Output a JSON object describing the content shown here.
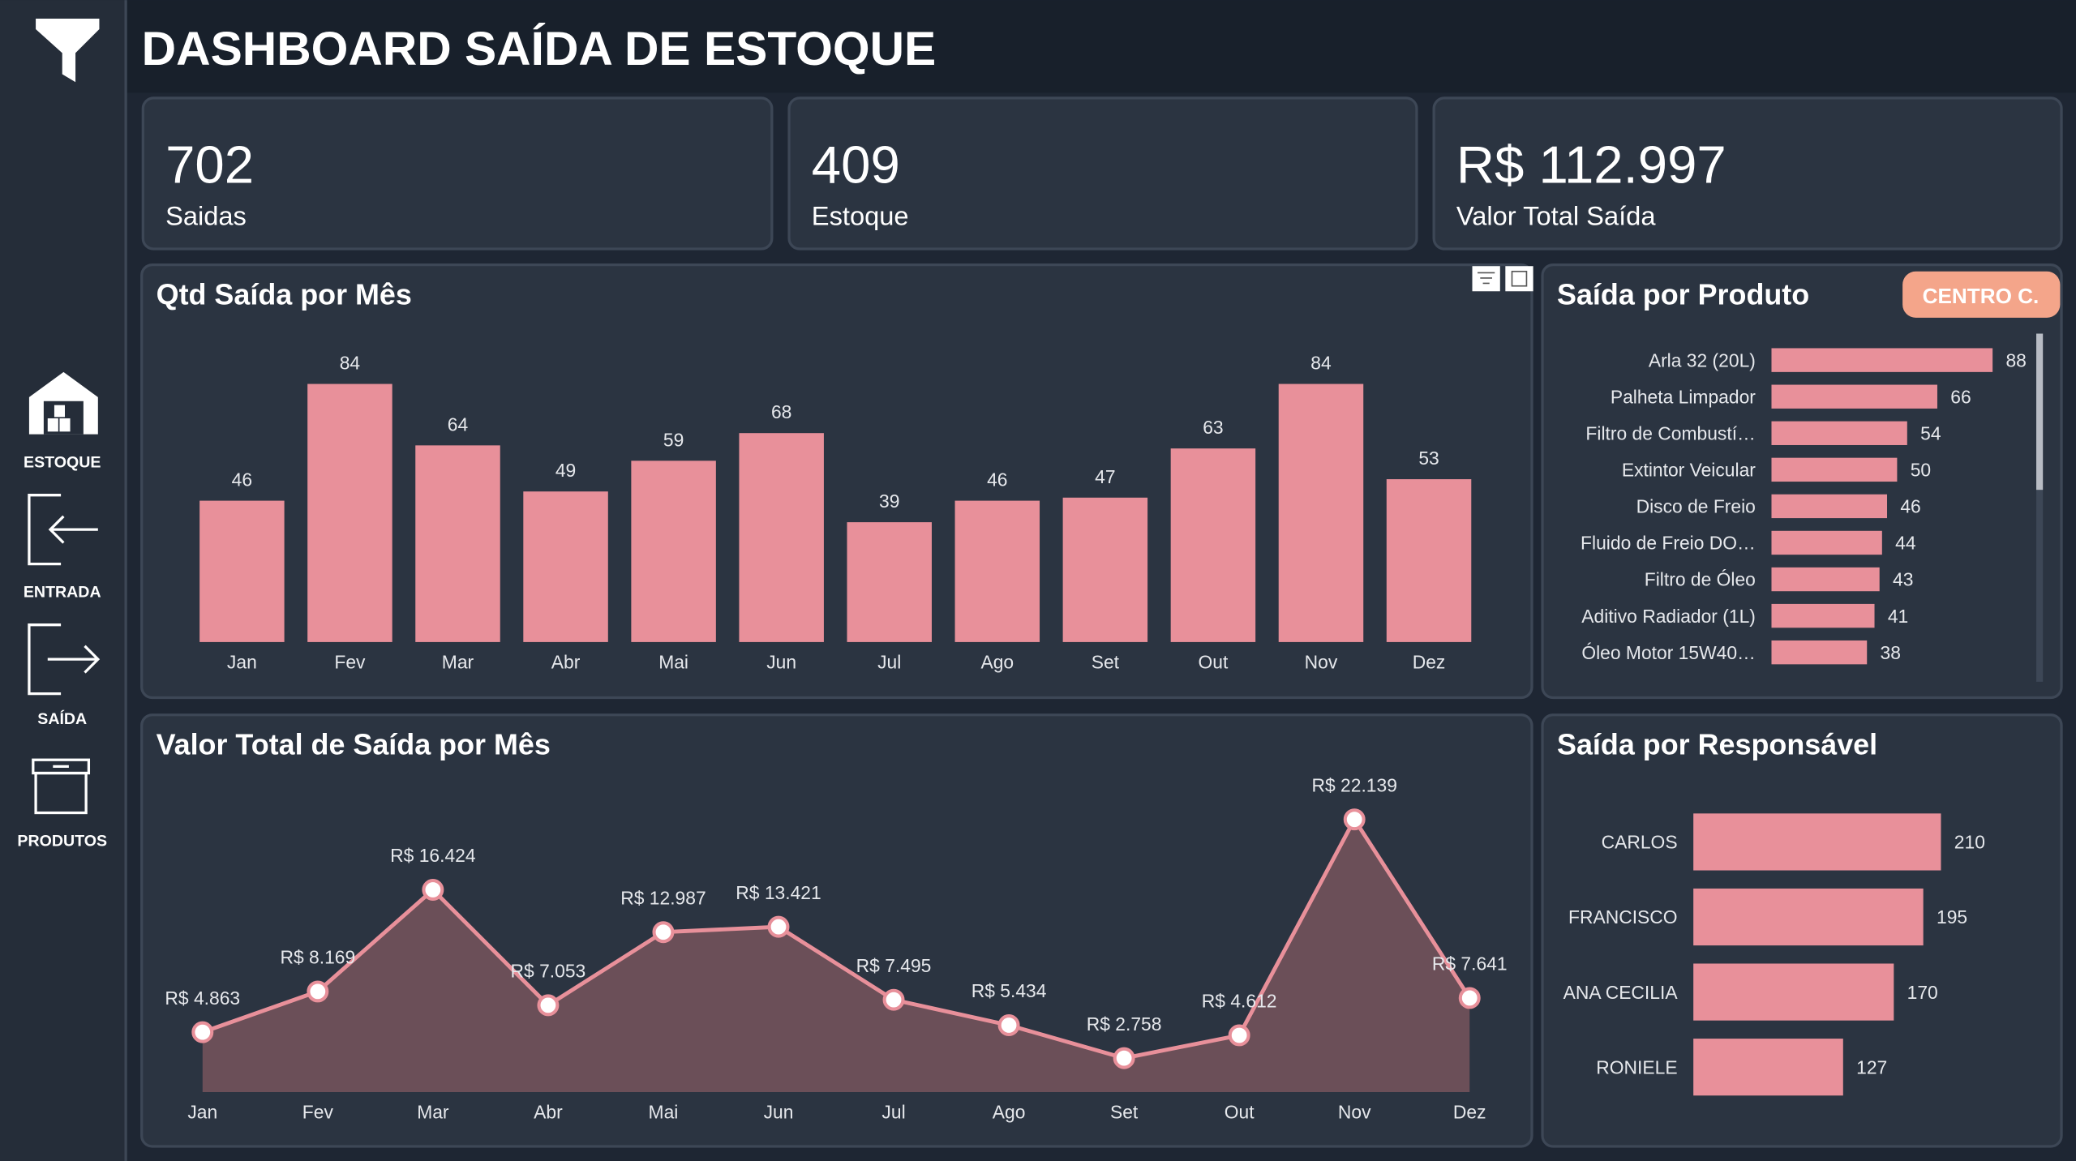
{
  "header": {
    "title": "DASHBOARD SAÍDA DE ESTOQUE"
  },
  "sidebar": {
    "items": [
      "ESTOQUE",
      "ENTRADA",
      "SAÍDA",
      "PRODUTOS"
    ]
  },
  "kpis": [
    {
      "value": 702,
      "label": "Saidas"
    },
    {
      "value": 409,
      "label": "Estoque"
    },
    {
      "value": "R$ 112.997",
      "label": "Valor Total Saída"
    }
  ],
  "chart_data": [
    {
      "type": "bar",
      "orientation": "vertical",
      "title": "Qtd Saída por Mês",
      "color": "#e8909a",
      "categories": [
        "Jan",
        "Fev",
        "Mar",
        "Abr",
        "Mai",
        "Jun",
        "Jul",
        "Ago",
        "Set",
        "Out",
        "Nov",
        "Dez"
      ],
      "values": [
        46,
        84,
        64,
        49,
        59,
        68,
        39,
        46,
        47,
        63,
        84,
        53
      ]
    },
    {
      "type": "bar",
      "orientation": "horizontal",
      "title": "Saída por Produto",
      "button": "CENTRO C.",
      "color": "#e8909a",
      "categories": [
        "Arla 32 (20L)",
        "Palheta Limpador",
        "Filtro de Combustí…",
        "Extintor Veicular",
        "Disco de Freio",
        "Fluido de Freio DO…",
        "Filtro de Óleo",
        "Aditivo Radiador (1L)",
        "Óleo Motor 15W40…"
      ],
      "values": [
        88,
        66,
        54,
        50,
        46,
        44,
        43,
        41,
        38
      ]
    },
    {
      "type": "line",
      "area": true,
      "title": "Valor Total de Saída por Mês",
      "color": "#e8909a",
      "area_color": "#6b4f58",
      "categories": [
        "Jan",
        "Fev",
        "Mar",
        "Abr",
        "Mai",
        "Jun",
        "Jul",
        "Ago",
        "Set",
        "Out",
        "Nov",
        "Dez"
      ],
      "values": [
        4863,
        8169,
        16424,
        7053,
        12987,
        13421,
        7495,
        5434,
        2758,
        4612,
        22139,
        7641
      ],
      "value_labels": [
        "R$ 4.863",
        "R$ 8.169",
        "R$ 16.424",
        "R$ 7.053",
        "R$ 12.987",
        "R$ 13.421",
        "R$ 7.495",
        "R$ 5.434",
        "R$ 2.758",
        "R$ 4.612",
        "R$ 22.139",
        "R$ 7.641"
      ]
    },
    {
      "type": "bar",
      "orientation": "horizontal",
      "title": "Saída por Responsável",
      "color": "#e8909a",
      "categories": [
        "CARLOS",
        "FRANCISCO",
        "ANA CECILIA",
        "RONIELE"
      ],
      "values": [
        210,
        195,
        170,
        127
      ]
    }
  ]
}
